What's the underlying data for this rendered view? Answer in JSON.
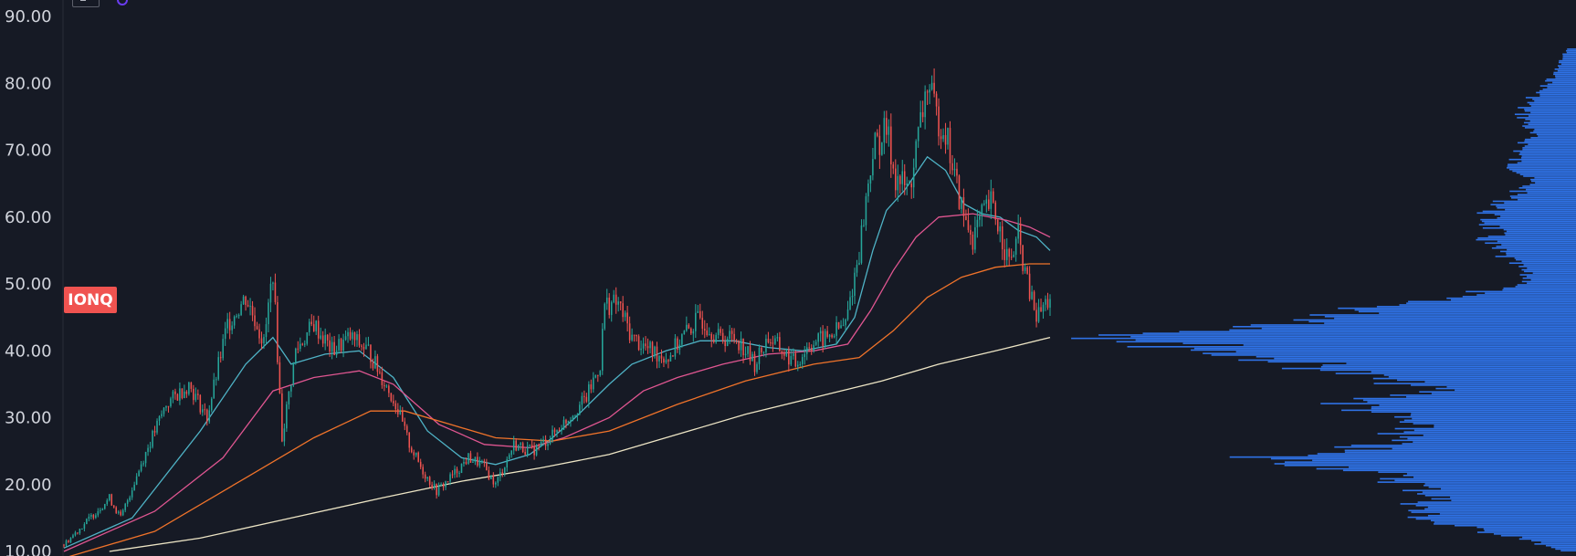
{
  "symbol": "IONQ",
  "colors": {
    "background": "#161a25",
    "up": "#26a69a",
    "down": "#ef5350",
    "ma_fast": "#4fb3c6",
    "ma_mid": "#e05691",
    "ma_slow": "#f0732a",
    "ma_long": "#ede5c5",
    "volume_profile": "#2f72e6",
    "axis_text": "#d1d4dc"
  },
  "chart_data": {
    "type": "candlestick",
    "title": "",
    "xlabel": "",
    "ylabel": "",
    "ylim": [
      10,
      90
    ],
    "y_ticks": [
      "10.00",
      "20.00",
      "30.00",
      "40.00",
      "50.00",
      "60.00",
      "70.00",
      "80.00",
      "90.00"
    ],
    "last_price_label": "IONQ",
    "price_path": [
      [
        0,
        11
      ],
      [
        10,
        14.5
      ],
      [
        20,
        18
      ],
      [
        25,
        15
      ],
      [
        35,
        24
      ],
      [
        45,
        32
      ],
      [
        55,
        35
      ],
      [
        63,
        30
      ],
      [
        72,
        44
      ],
      [
        80,
        48
      ],
      [
        85,
        44
      ],
      [
        88,
        41
      ],
      [
        92,
        52
      ],
      [
        96,
        27
      ],
      [
        102,
        40
      ],
      [
        110,
        44
      ],
      [
        118,
        40
      ],
      [
        126,
        42
      ],
      [
        134,
        40
      ],
      [
        140,
        36
      ],
      [
        146,
        32
      ],
      [
        152,
        26
      ],
      [
        158,
        22
      ],
      [
        164,
        19
      ],
      [
        170,
        21
      ],
      [
        178,
        24
      ],
      [
        184,
        23
      ],
      [
        190,
        20
      ],
      [
        198,
        26
      ],
      [
        206,
        25
      ],
      [
        214,
        27
      ],
      [
        222,
        30
      ],
      [
        230,
        33
      ],
      [
        236,
        38
      ],
      [
        238,
        47
      ],
      [
        244,
        47
      ],
      [
        250,
        42
      ],
      [
        258,
        40
      ],
      [
        266,
        39
      ],
      [
        272,
        42
      ],
      [
        280,
        45
      ],
      [
        288,
        42
      ],
      [
        296,
        42
      ],
      [
        304,
        38
      ],
      [
        310,
        42
      ],
      [
        316,
        40
      ],
      [
        322,
        38
      ],
      [
        328,
        41
      ],
      [
        336,
        42
      ],
      [
        344,
        44
      ],
      [
        350,
        55
      ],
      [
        356,
        70
      ],
      [
        362,
        73
      ],
      [
        366,
        66
      ],
      [
        372,
        64
      ],
      [
        376,
        72
      ],
      [
        380,
        80
      ],
      [
        384,
        75
      ],
      [
        388,
        73
      ],
      [
        392,
        66
      ],
      [
        396,
        60
      ],
      [
        400,
        57
      ],
      [
        404,
        60
      ],
      [
        408,
        62
      ],
      [
        412,
        58
      ],
      [
        416,
        53
      ],
      [
        420,
        57
      ],
      [
        424,
        50
      ],
      [
        428,
        45
      ],
      [
        432,
        47
      ],
      [
        434,
        48
      ]
    ],
    "series": [
      {
        "role": "ma-fast",
        "values": [
          [
            0,
            10.5
          ],
          [
            30,
            15
          ],
          [
            60,
            28
          ],
          [
            80,
            38
          ],
          [
            92,
            42
          ],
          [
            100,
            38
          ],
          [
            115,
            39.5
          ],
          [
            130,
            40
          ],
          [
            145,
            36
          ],
          [
            160,
            28
          ],
          [
            175,
            24
          ],
          [
            190,
            23
          ],
          [
            205,
            24.5
          ],
          [
            215,
            27
          ],
          [
            225,
            30
          ],
          [
            240,
            35
          ],
          [
            250,
            38
          ],
          [
            265,
            40
          ],
          [
            280,
            41.5
          ],
          [
            295,
            41.5
          ],
          [
            310,
            40.5
          ],
          [
            325,
            40
          ],
          [
            340,
            41
          ],
          [
            348,
            45
          ],
          [
            356,
            55
          ],
          [
            362,
            61
          ],
          [
            370,
            64
          ],
          [
            380,
            69
          ],
          [
            388,
            67
          ],
          [
            396,
            62
          ],
          [
            404,
            60.5
          ],
          [
            412,
            60
          ],
          [
            420,
            58
          ],
          [
            428,
            57
          ],
          [
            434,
            55
          ]
        ]
      },
      {
        "role": "ma-mid",
        "values": [
          [
            0,
            10
          ],
          [
            40,
            16
          ],
          [
            70,
            24
          ],
          [
            92,
            34
          ],
          [
            110,
            36
          ],
          [
            130,
            37
          ],
          [
            145,
            35
          ],
          [
            165,
            29
          ],
          [
            185,
            26
          ],
          [
            205,
            25.5
          ],
          [
            220,
            27
          ],
          [
            240,
            30
          ],
          [
            255,
            34
          ],
          [
            270,
            36
          ],
          [
            290,
            38
          ],
          [
            310,
            39.5
          ],
          [
            330,
            40
          ],
          [
            345,
            41
          ],
          [
            355,
            46
          ],
          [
            365,
            52
          ],
          [
            375,
            57
          ],
          [
            385,
            60
          ],
          [
            400,
            60.5
          ],
          [
            415,
            59.5
          ],
          [
            425,
            58.5
          ],
          [
            434,
            57
          ]
        ]
      },
      {
        "role": "ma-slow",
        "values": [
          [
            0,
            9
          ],
          [
            40,
            13
          ],
          [
            80,
            21
          ],
          [
            110,
            27
          ],
          [
            135,
            31
          ],
          [
            150,
            31
          ],
          [
            170,
            29
          ],
          [
            190,
            27
          ],
          [
            215,
            26.5
          ],
          [
            240,
            28
          ],
          [
            270,
            32
          ],
          [
            300,
            35.5
          ],
          [
            330,
            38
          ],
          [
            350,
            39
          ],
          [
            365,
            43
          ],
          [
            380,
            48
          ],
          [
            395,
            51
          ],
          [
            410,
            52.5
          ],
          [
            425,
            53
          ],
          [
            434,
            53
          ]
        ]
      },
      {
        "role": "ma-long",
        "values": [
          [
            20,
            10
          ],
          [
            60,
            12
          ],
          [
            100,
            15
          ],
          [
            140,
            18
          ],
          [
            175,
            20.5
          ],
          [
            210,
            22.5
          ],
          [
            240,
            24.5
          ],
          [
            270,
            27.5
          ],
          [
            300,
            30.5
          ],
          [
            330,
            33
          ],
          [
            360,
            35.5
          ],
          [
            385,
            38
          ],
          [
            410,
            40
          ],
          [
            434,
            42
          ]
        ]
      }
    ],
    "volume_profile": [
      [
        85,
        0.02
      ],
      [
        80,
        0.06
      ],
      [
        76,
        0.12
      ],
      [
        72,
        0.1
      ],
      [
        68,
        0.14
      ],
      [
        65,
        0.1
      ],
      [
        62,
        0.16
      ],
      [
        60,
        0.2
      ],
      [
        58,
        0.18
      ],
      [
        56,
        0.2
      ],
      [
        54,
        0.16
      ],
      [
        52,
        0.12
      ],
      [
        50,
        0.1
      ],
      [
        48,
        0.28
      ],
      [
        46,
        0.48
      ],
      [
        44,
        0.56
      ],
      [
        42,
        0.96
      ],
      [
        40,
        0.8
      ],
      [
        38,
        0.6
      ],
      [
        36,
        0.46
      ],
      [
        34,
        0.3
      ],
      [
        32,
        0.5
      ],
      [
        30,
        0.4
      ],
      [
        28,
        0.36
      ],
      [
        26,
        0.44
      ],
      [
        25,
        0.5
      ],
      [
        24,
        0.7
      ],
      [
        22,
        0.46
      ],
      [
        20,
        0.36
      ],
      [
        18,
        0.3
      ],
      [
        16,
        0.36
      ],
      [
        14,
        0.3
      ],
      [
        12,
        0.12
      ],
      [
        10,
        0.04
      ]
    ]
  }
}
